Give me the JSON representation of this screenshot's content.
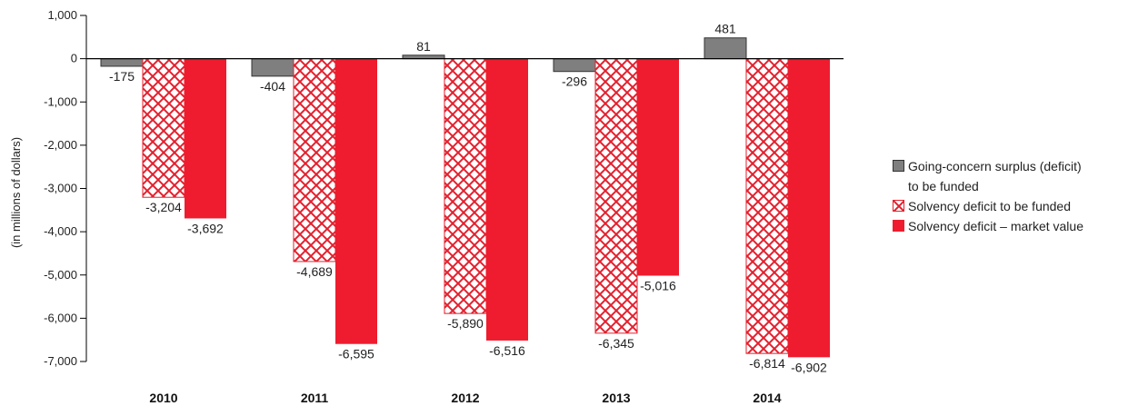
{
  "chart_data": {
    "type": "bar",
    "title": "",
    "xlabel": "",
    "ylabel": "(in millions of dollars)",
    "ylim": [
      -7000,
      1000
    ],
    "yticks": [
      1000,
      0,
      -1000,
      -2000,
      -3000,
      -4000,
      -5000,
      -6000,
      -7000
    ],
    "ytick_labels": [
      "1,000",
      "0",
      "-1,000",
      "-2,000",
      "-3,000",
      "-4,000",
      "-5,000",
      "-6,000",
      "-7,000"
    ],
    "categories": [
      "2010",
      "2011",
      "2012",
      "2013",
      "2014"
    ],
    "series": [
      {
        "name": "Going-concern surplus (deficit) to be funded",
        "legend_lines": [
          "Going-concern surplus (deficit)",
          "to be funded"
        ],
        "style": "solid-gray",
        "color": "#7f7f7f",
        "values": [
          -175,
          -404,
          81,
          -296,
          481
        ],
        "labels": [
          "-175",
          "-404",
          "81",
          "-296",
          "481"
        ]
      },
      {
        "name": "Solvency deficit to be funded",
        "legend_lines": [
          "Solvency deficit to be funded"
        ],
        "style": "crosshatch-red",
        "color": "#e3202e",
        "values": [
          -3204,
          -4689,
          -5890,
          -6345,
          -6814
        ],
        "labels": [
          "-3,204",
          "-4,689",
          "-5,890",
          "-6,345",
          "-6,814"
        ]
      },
      {
        "name": "Solvency deficit – market value",
        "legend_lines": [
          "Solvency deficit – market value"
        ],
        "style": "solid-red",
        "color": "#ee1c2e",
        "values": [
          -3692,
          -6595,
          -6516,
          -5016,
          -6902
        ],
        "labels": [
          "-3,692",
          "-6,595",
          "-6,516",
          "-5,016",
          "-6,902"
        ]
      }
    ],
    "grid": false,
    "legend_position": "right"
  }
}
